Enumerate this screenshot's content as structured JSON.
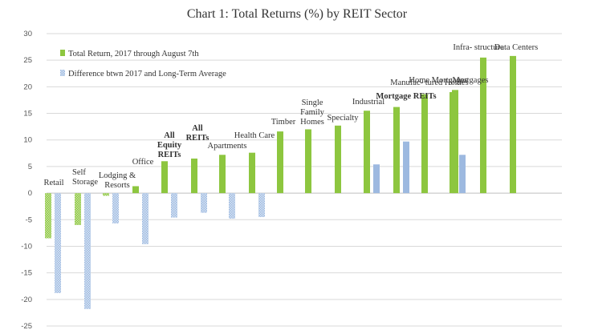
{
  "chart_data": {
    "type": "bar",
    "title": "Chart 1: Total Returns (%) by REIT Sector",
    "xlabel": "",
    "ylabel": "",
    "ylim": [
      -25,
      30
    ],
    "yticks": [
      30,
      25,
      20,
      15,
      10,
      5,
      0,
      -5,
      -10,
      -15,
      -20,
      -25
    ],
    "grid": true,
    "legend_position": "top-left",
    "categories": [
      "Retail",
      "Self Storage",
      "Lodging & Resorts",
      "Office",
      "All Equity REITs",
      "All REITs",
      "Apartments",
      "Health Care",
      "Timber",
      "Single Family Homes",
      "Specialty",
      "Industrial",
      "Mortgage REITs",
      "Manufac- tured Homes",
      "Home Mortgages",
      "Mortgages",
      "Infra- structure",
      "Data Centers"
    ],
    "bold_categories": [
      "All Equity REITs",
      "All REITs",
      "Mortgage REITs"
    ],
    "series": [
      {
        "name": "Total Return, 2017 through August 7th",
        "color": "#8DC63F",
        "values": [
          -8.5,
          -6.0,
          -0.5,
          1.3,
          6.0,
          6.5,
          7.2,
          7.6,
          11.6,
          12.0,
          12.7,
          15.5,
          16.2,
          18.6,
          19.0,
          19.4,
          25.5,
          25.8
        ]
      },
      {
        "name": "Difference btwn 2017 and Long-Term Average",
        "color": "#9DB9E0",
        "values": [
          -18.8,
          -21.8,
          -5.7,
          -9.6,
          -4.6,
          -3.7,
          -4.8,
          -4.5,
          null,
          null,
          null,
          5.4,
          9.7,
          null,
          7.2,
          null,
          null,
          null
        ]
      }
    ]
  }
}
